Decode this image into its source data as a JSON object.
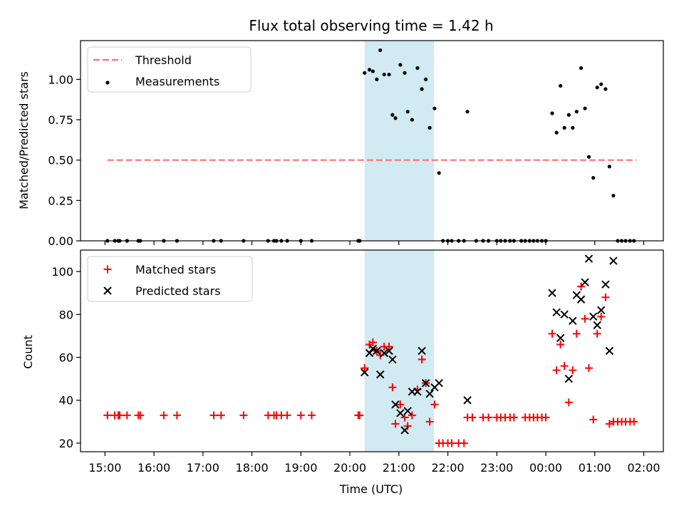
{
  "chart_data": [
    {
      "type": "scatter",
      "title": "Flux total observing time = 1.42 h",
      "ylabel": "Matched/Predicted stars",
      "xlabel": "",
      "ylim": [
        0,
        1.24
      ],
      "yticks": [
        0.0,
        0.25,
        0.5,
        0.75,
        1.0
      ],
      "ytick_labels": [
        "0.00",
        "0.25",
        "0.50",
        "0.75",
        "1.00"
      ],
      "grid": false,
      "legend_position": "top-left",
      "highlight_span": {
        "start": 20.3,
        "end": 21.72,
        "color": "#add8e6"
      },
      "series": [
        {
          "name": "Threshold",
          "kind": "dashed-line",
          "color": "#ff7070",
          "points": [
            [
              15.05,
              0.5
            ],
            [
              25.85,
              0.5
            ]
          ]
        },
        {
          "name": "Measurements",
          "kind": "dot",
          "color": "#000000",
          "points": [
            [
              15.05,
              0
            ],
            [
              15.2,
              0
            ],
            [
              15.27,
              0
            ],
            [
              15.3,
              0
            ],
            [
              15.45,
              0
            ],
            [
              15.68,
              0
            ],
            [
              15.72,
              0
            ],
            [
              16.2,
              0
            ],
            [
              16.47,
              0
            ],
            [
              17.22,
              0
            ],
            [
              17.37,
              0
            ],
            [
              17.83,
              0
            ],
            [
              18.33,
              0
            ],
            [
              18.45,
              0
            ],
            [
              18.5,
              0
            ],
            [
              18.6,
              0
            ],
            [
              18.72,
              0
            ],
            [
              19.0,
              0
            ],
            [
              19.22,
              0
            ],
            [
              20.17,
              0
            ],
            [
              20.2,
              0
            ],
            [
              20.3,
              1.04
            ],
            [
              20.4,
              1.06
            ],
            [
              20.47,
              1.05
            ],
            [
              20.55,
              1.0
            ],
            [
              20.62,
              1.18
            ],
            [
              20.7,
              1.03
            ],
            [
              20.8,
              1.03
            ],
            [
              20.87,
              0.78
            ],
            [
              20.93,
              0.76
            ],
            [
              21.03,
              1.09
            ],
            [
              21.12,
              1.04
            ],
            [
              21.18,
              0.8
            ],
            [
              21.27,
              0.75
            ],
            [
              21.38,
              1.07
            ],
            [
              21.47,
              0.94
            ],
            [
              21.55,
              1.0
            ],
            [
              21.63,
              0.7
            ],
            [
              21.73,
              0.82
            ],
            [
              21.82,
              0.42
            ],
            [
              21.9,
              0
            ],
            [
              22.0,
              0
            ],
            [
              22.08,
              0
            ],
            [
              22.22,
              0
            ],
            [
              22.33,
              0
            ],
            [
              22.4,
              0.8
            ],
            [
              22.58,
              0
            ],
            [
              22.72,
              0
            ],
            [
              22.83,
              0
            ],
            [
              23.0,
              0
            ],
            [
              23.08,
              0
            ],
            [
              23.17,
              0
            ],
            [
              23.27,
              0
            ],
            [
              23.35,
              0
            ],
            [
              23.5,
              0
            ],
            [
              23.58,
              0
            ],
            [
              23.67,
              0
            ],
            [
              23.75,
              0
            ],
            [
              23.83,
              0
            ],
            [
              23.92,
              0
            ],
            [
              24.0,
              0
            ],
            [
              24.13,
              0.79
            ],
            [
              24.22,
              0.67
            ],
            [
              24.3,
              0.96
            ],
            [
              24.38,
              0.7
            ],
            [
              24.47,
              0.78
            ],
            [
              24.55,
              0.7
            ],
            [
              24.63,
              0.8
            ],
            [
              24.72,
              1.07
            ],
            [
              24.8,
              0.82
            ],
            [
              24.88,
              0.52
            ],
            [
              24.97,
              0.39
            ],
            [
              25.05,
              0.95
            ],
            [
              25.13,
              0.97
            ],
            [
              25.22,
              0.94
            ],
            [
              25.3,
              0.46
            ],
            [
              25.38,
              0.28
            ],
            [
              25.47,
              0
            ],
            [
              25.55,
              0
            ],
            [
              25.63,
              0
            ],
            [
              25.72,
              0
            ],
            [
              25.8,
              0
            ]
          ]
        }
      ]
    },
    {
      "type": "scatter",
      "title": "",
      "ylabel": "Count",
      "xlabel": "Time (UTC)",
      "xlim": [
        14.5,
        26.4
      ],
      "ylim": [
        16,
        110
      ],
      "yticks": [
        20,
        40,
        60,
        80,
        100
      ],
      "ytick_labels": [
        "20",
        "40",
        "60",
        "80",
        "100"
      ],
      "xticks": [
        15,
        16,
        17,
        18,
        19,
        20,
        21,
        22,
        23,
        24,
        25,
        26
      ],
      "xtick_labels": [
        "15:00",
        "16:00",
        "17:00",
        "18:00",
        "19:00",
        "20:00",
        "21:00",
        "22:00",
        "23:00",
        "00:00",
        "01:00",
        "02:00"
      ],
      "grid": false,
      "legend_position": "top-left",
      "highlight_span": {
        "start": 20.3,
        "end": 21.72,
        "color": "#add8e6"
      },
      "series": [
        {
          "name": "Matched stars",
          "kind": "plus",
          "color": "#ff0000",
          "points": [
            [
              15.05,
              33
            ],
            [
              15.2,
              33
            ],
            [
              15.27,
              33
            ],
            [
              15.3,
              33
            ],
            [
              15.45,
              33
            ],
            [
              15.68,
              33
            ],
            [
              15.72,
              33
            ],
            [
              16.2,
              33
            ],
            [
              16.47,
              33
            ],
            [
              17.22,
              33
            ],
            [
              17.37,
              33
            ],
            [
              17.83,
              33
            ],
            [
              18.33,
              33
            ],
            [
              18.45,
              33
            ],
            [
              18.5,
              33
            ],
            [
              18.6,
              33
            ],
            [
              18.72,
              33
            ],
            [
              19.0,
              33
            ],
            [
              19.22,
              33
            ],
            [
              20.17,
              33
            ],
            [
              20.2,
              33
            ],
            [
              20.3,
              55
            ],
            [
              20.4,
              66
            ],
            [
              20.47,
              67
            ],
            [
              20.55,
              63
            ],
            [
              20.62,
              61
            ],
            [
              20.7,
              65
            ],
            [
              20.8,
              65
            ],
            [
              20.87,
              46
            ],
            [
              20.93,
              29
            ],
            [
              21.03,
              38
            ],
            [
              21.12,
              32
            ],
            [
              21.18,
              28
            ],
            [
              21.27,
              33
            ],
            [
              21.38,
              45
            ],
            [
              21.47,
              59
            ],
            [
              21.55,
              48
            ],
            [
              21.63,
              30
            ],
            [
              21.73,
              38
            ],
            [
              21.82,
              20
            ],
            [
              21.9,
              20
            ],
            [
              22.0,
              20
            ],
            [
              22.08,
              20
            ],
            [
              22.22,
              20
            ],
            [
              22.33,
              20
            ],
            [
              22.4,
              32
            ],
            [
              22.5,
              32
            ],
            [
              22.72,
              32
            ],
            [
              22.83,
              32
            ],
            [
              23.0,
              32
            ],
            [
              23.08,
              32
            ],
            [
              23.17,
              32
            ],
            [
              23.27,
              32
            ],
            [
              23.35,
              32
            ],
            [
              23.58,
              32
            ],
            [
              23.67,
              32
            ],
            [
              23.75,
              32
            ],
            [
              23.83,
              32
            ],
            [
              23.92,
              32
            ],
            [
              24.0,
              32
            ],
            [
              24.13,
              71
            ],
            [
              24.22,
              54
            ],
            [
              24.3,
              66
            ],
            [
              24.38,
              56
            ],
            [
              24.47,
              39
            ],
            [
              24.55,
              54
            ],
            [
              24.63,
              71
            ],
            [
              24.72,
              93
            ],
            [
              24.8,
              78
            ],
            [
              24.88,
              55
            ],
            [
              24.97,
              31
            ],
            [
              25.05,
              71
            ],
            [
              25.13,
              79
            ],
            [
              25.22,
              88
            ],
            [
              25.3,
              29
            ],
            [
              25.38,
              30
            ],
            [
              25.47,
              30
            ],
            [
              25.55,
              30
            ],
            [
              25.63,
              30
            ],
            [
              25.72,
              30
            ],
            [
              25.8,
              30
            ]
          ]
        },
        {
          "name": "Predicted stars",
          "kind": "x",
          "color": "#000000",
          "points": [
            [
              20.3,
              53
            ],
            [
              20.4,
              62
            ],
            [
              20.47,
              64
            ],
            [
              20.55,
              63
            ],
            [
              20.62,
              52
            ],
            [
              20.7,
              62
            ],
            [
              20.8,
              63
            ],
            [
              20.87,
              59
            ],
            [
              20.93,
              38
            ],
            [
              21.03,
              34
            ],
            [
              21.12,
              26
            ],
            [
              21.18,
              35
            ],
            [
              21.27,
              44
            ],
            [
              21.38,
              44
            ],
            [
              21.47,
              63
            ],
            [
              21.55,
              48
            ],
            [
              21.63,
              43
            ],
            [
              21.73,
              46
            ],
            [
              21.82,
              48
            ],
            [
              22.4,
              40
            ],
            [
              24.13,
              90
            ],
            [
              24.22,
              81
            ],
            [
              24.3,
              69
            ],
            [
              24.38,
              80
            ],
            [
              24.47,
              50
            ],
            [
              24.55,
              77
            ],
            [
              24.63,
              89
            ],
            [
              24.72,
              87
            ],
            [
              24.8,
              95
            ],
            [
              24.88,
              106
            ],
            [
              24.97,
              79
            ],
            [
              25.05,
              75
            ],
            [
              25.13,
              82
            ],
            [
              25.22,
              94
            ],
            [
              25.3,
              63
            ],
            [
              25.38,
              105
            ]
          ]
        }
      ]
    }
  ]
}
